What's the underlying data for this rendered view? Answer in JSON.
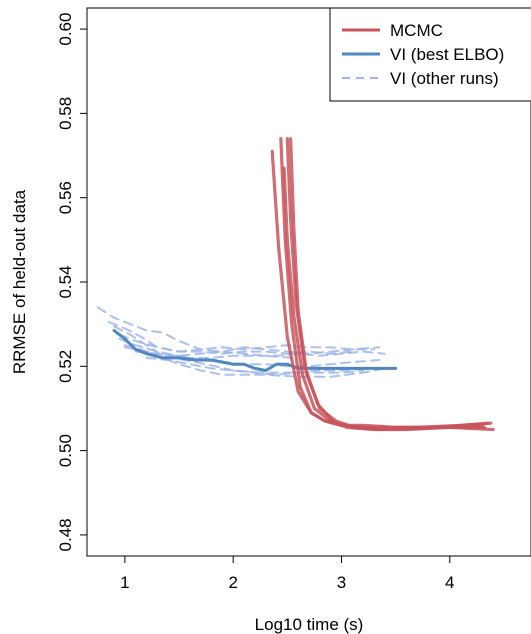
{
  "chart_data": {
    "type": "line",
    "title": "",
    "xlabel": "Log10 time (s)",
    "ylabel": "RRMSE of held-out data",
    "xlim": [
      0.65,
      4.75
    ],
    "ylim": [
      0.475,
      0.605
    ],
    "xticks": [
      1,
      2,
      3,
      4
    ],
    "xtick_labels": [
      "1",
      "2",
      "3",
      "4"
    ],
    "yticks": [
      0.48,
      0.5,
      0.52,
      0.54,
      0.56,
      0.58,
      0.6
    ],
    "ytick_labels": [
      "0.48",
      "0.50",
      "0.52",
      "0.54",
      "0.56",
      "0.58",
      "0.60"
    ],
    "grid": false,
    "legend_position": "top-right",
    "legend": [
      {
        "label": "MCMC",
        "color": "#c8545c",
        "style": "solid"
      },
      {
        "label": "VI (best ELBO)",
        "color": "#4f86c0",
        "style": "solid"
      },
      {
        "label": "VI (other runs)",
        "color": "#9db5ea",
        "style": "dashed"
      }
    ],
    "series": [
      {
        "group": "MCMC",
        "x": [
          2.36,
          2.42,
          2.5,
          2.6,
          2.72,
          2.85,
          3.0,
          3.2,
          3.5,
          3.9,
          4.3
        ],
        "y": [
          0.571,
          0.548,
          0.527,
          0.514,
          0.509,
          0.507,
          0.506,
          0.506,
          0.5055,
          0.5055,
          0.506
        ]
      },
      {
        "group": "MCMC",
        "x": [
          2.44,
          2.48,
          2.54,
          2.62,
          2.72,
          2.85,
          3.0,
          3.2,
          3.5,
          3.9,
          4.35
        ],
        "y": [
          0.574,
          0.55,
          0.53,
          0.515,
          0.509,
          0.507,
          0.506,
          0.5055,
          0.505,
          0.5055,
          0.5065
        ]
      },
      {
        "group": "MCMC",
        "x": [
          2.47,
          2.5,
          2.56,
          2.64,
          2.75,
          2.9,
          3.05,
          3.3,
          3.6,
          4.0,
          4.4
        ],
        "y": [
          0.567,
          0.55,
          0.532,
          0.518,
          0.51,
          0.507,
          0.5055,
          0.505,
          0.505,
          0.5055,
          0.505
        ]
      },
      {
        "group": "MCMC",
        "x": [
          2.5,
          2.53,
          2.58,
          2.66,
          2.78,
          2.92,
          3.1,
          3.35,
          3.7,
          4.1,
          4.38
        ],
        "y": [
          0.574,
          0.555,
          0.535,
          0.52,
          0.511,
          0.507,
          0.5055,
          0.5055,
          0.5055,
          0.506,
          0.5065
        ]
      },
      {
        "group": "MCMC",
        "x": [
          2.53,
          2.56,
          2.6,
          2.68,
          2.8,
          2.95,
          3.12,
          3.35,
          3.7,
          4.1,
          4.32
        ],
        "y": [
          0.574,
          0.553,
          0.533,
          0.518,
          0.51,
          0.507,
          0.5055,
          0.505,
          0.5055,
          0.5055,
          0.5055
        ]
      },
      {
        "group": "VI (best ELBO)",
        "x": [
          0.9,
          1.0,
          1.1,
          1.2,
          1.35,
          1.5,
          1.65,
          1.8,
          1.9,
          2.0,
          2.1,
          2.2,
          2.3,
          2.4,
          2.5,
          2.6,
          2.7,
          2.8,
          2.9,
          3.0,
          3.2,
          3.4,
          3.5
        ],
        "y": [
          0.5285,
          0.5265,
          0.524,
          0.523,
          0.522,
          0.522,
          0.5215,
          0.5215,
          0.521,
          0.5205,
          0.5205,
          0.5195,
          0.519,
          0.5205,
          0.5205,
          0.5195,
          0.5195,
          0.5195,
          0.5195,
          0.5195,
          0.5195,
          0.5195,
          0.5195
        ]
      },
      {
        "group": "VI (other runs)",
        "x": [
          0.75,
          0.9,
          1.05,
          1.2,
          1.35,
          1.5,
          1.7,
          1.9,
          2.1,
          2.3,
          2.55
        ],
        "y": [
          0.534,
          0.5315,
          0.53,
          0.5285,
          0.528,
          0.526,
          0.524,
          0.5235,
          0.523,
          0.5225,
          0.522
        ]
      },
      {
        "group": "VI (other runs)",
        "x": [
          0.85,
          1.0,
          1.15,
          1.3,
          1.5,
          1.7,
          1.9,
          2.1,
          2.3,
          2.5,
          2.7,
          2.9,
          3.1
        ],
        "y": [
          0.5305,
          0.529,
          0.527,
          0.5245,
          0.5235,
          0.5235,
          0.523,
          0.5235,
          0.5235,
          0.523,
          0.5235,
          0.523,
          0.5235
        ]
      },
      {
        "group": "VI (other runs)",
        "x": [
          0.9,
          1.05,
          1.2,
          1.35,
          1.55,
          1.75,
          2.0,
          2.25,
          2.5,
          2.75,
          3.0,
          3.2
        ],
        "y": [
          0.5295,
          0.5275,
          0.525,
          0.5225,
          0.5215,
          0.5205,
          0.519,
          0.5185,
          0.5185,
          0.5185,
          0.5185,
          0.519
        ]
      },
      {
        "group": "VI (other runs)",
        "x": [
          0.95,
          1.1,
          1.3,
          1.5,
          1.7,
          1.9,
          2.1,
          2.3,
          2.5,
          2.7,
          2.9,
          3.1,
          3.35
        ],
        "y": [
          0.5265,
          0.525,
          0.5235,
          0.5225,
          0.5215,
          0.521,
          0.5205,
          0.5205,
          0.52,
          0.52,
          0.5205,
          0.521,
          0.5215
        ]
      },
      {
        "group": "VI (other runs)",
        "x": [
          1.0,
          1.2,
          1.4,
          1.6,
          1.8,
          2.0,
          2.2,
          2.4,
          2.6,
          2.8,
          3.0,
          3.2,
          3.4
        ],
        "y": [
          0.5245,
          0.5235,
          0.5225,
          0.522,
          0.522,
          0.5225,
          0.5225,
          0.5225,
          0.523,
          0.5225,
          0.523,
          0.5235,
          0.523
        ]
      },
      {
        "group": "VI (other runs)",
        "x": [
          0.95,
          1.1,
          1.3,
          1.5,
          1.7,
          1.9,
          2.1,
          2.3,
          2.5,
          2.7,
          2.9,
          3.1,
          3.3
        ],
        "y": [
          0.5275,
          0.526,
          0.5245,
          0.5235,
          0.524,
          0.5245,
          0.524,
          0.5245,
          0.525,
          0.5245,
          0.5245,
          0.524,
          0.524
        ]
      },
      {
        "group": "VI (other runs)",
        "x": [
          1.0,
          1.15,
          1.3,
          1.5,
          1.7,
          1.9,
          2.1,
          2.3,
          2.6,
          2.9,
          3.2,
          3.4
        ],
        "y": [
          0.525,
          0.524,
          0.5225,
          0.5205,
          0.519,
          0.518,
          0.518,
          0.518,
          0.5175,
          0.5175,
          0.5185,
          0.5195
        ]
      },
      {
        "group": "VI (other runs)",
        "x": [
          1.1,
          1.3,
          1.5,
          1.7,
          1.9,
          2.1,
          2.3,
          2.5,
          2.7,
          2.9,
          3.1,
          3.35
        ],
        "y": [
          0.5235,
          0.523,
          0.5225,
          0.523,
          0.5235,
          0.5245,
          0.524,
          0.5235,
          0.523,
          0.5235,
          0.524,
          0.5245
        ]
      },
      {
        "group": "VI (other runs)",
        "x": [
          1.2,
          1.4,
          1.6,
          1.8,
          2.0,
          2.2,
          2.4,
          2.6,
          2.8,
          3.0,
          3.3
        ],
        "y": [
          0.522,
          0.5215,
          0.5205,
          0.5195,
          0.519,
          0.5185,
          0.518,
          0.5185,
          0.519,
          0.519,
          0.5195
        ]
      }
    ]
  }
}
